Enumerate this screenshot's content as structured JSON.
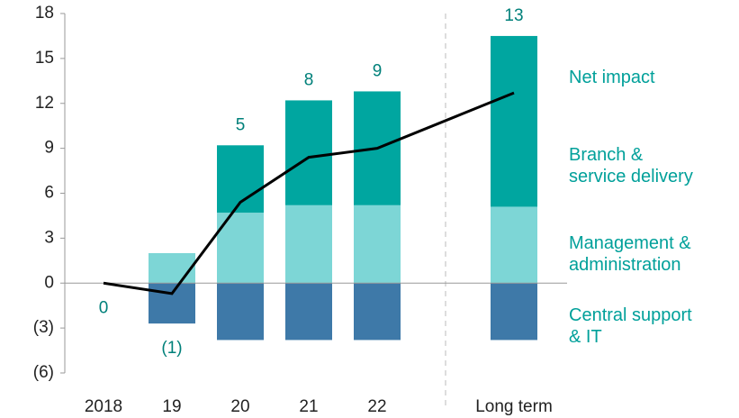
{
  "chart_data": {
    "type": "stacked_bar_line",
    "categories": [
      "2018",
      "19",
      "20",
      "21",
      "22",
      "Long term"
    ],
    "ylim": [
      -6,
      18
    ],
    "yticks": [
      {
        "value": -6,
        "label": "(6)"
      },
      {
        "value": -3,
        "label": "(3)"
      },
      0,
      3,
      6,
      9,
      12,
      15,
      18
    ],
    "series": [
      {
        "name": "Central support\n& IT",
        "color": "#3e79a8",
        "values": [
          0,
          -2.7,
          -3.8,
          -3.8,
          -3.8,
          -3.8
        ]
      },
      {
        "name": "Management &\nadministration",
        "color": "#7dd6d6",
        "values": [
          0,
          2.0,
          4.7,
          5.2,
          5.2,
          5.1
        ]
      },
      {
        "name": "Branch &\nservice delivery",
        "color": "#00a6a0",
        "values": [
          0,
          0,
          4.5,
          7.0,
          7.6,
          11.4
        ]
      }
    ],
    "line": {
      "name": "Net impact",
      "color": "#000000",
      "values": [
        0,
        -0.7,
        5.4,
        8.4,
        9.0,
        12.7
      ],
      "value_labels": [
        "0",
        "(1)",
        "5",
        "8",
        "9",
        "13"
      ]
    }
  }
}
